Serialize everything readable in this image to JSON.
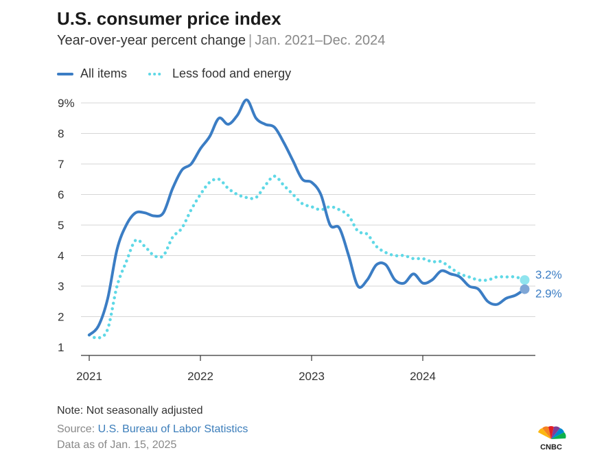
{
  "header": {
    "title": "U.S. consumer price index",
    "subtitle_main": "Year-over-year percent change",
    "subtitle_range": "Jan. 2021–Dec. 2024"
  },
  "legend": {
    "all_items": "All items",
    "core": "Less food and energy"
  },
  "footer": {
    "note": "Note: Not seasonally adjusted",
    "source_prefix": "Source:",
    "source_link": "U.S. Bureau of Labor Statistics",
    "as_of": "Data as of Jan. 15, 2025"
  },
  "logo": {
    "text": "CNBC",
    "icon": "cnbc-peacock-icon"
  },
  "colors": {
    "all_items": "#3b7dc4",
    "core": "#5fd8e6",
    "grid": "#d6d6d6",
    "text": "#333333"
  },
  "chart_data": {
    "type": "line",
    "x": [
      "2021-01",
      "2021-02",
      "2021-03",
      "2021-04",
      "2021-05",
      "2021-06",
      "2021-07",
      "2021-08",
      "2021-09",
      "2021-10",
      "2021-11",
      "2021-12",
      "2022-01",
      "2022-02",
      "2022-03",
      "2022-04",
      "2022-05",
      "2022-06",
      "2022-07",
      "2022-08",
      "2022-09",
      "2022-10",
      "2022-11",
      "2022-12",
      "2023-01",
      "2023-02",
      "2023-03",
      "2023-04",
      "2023-05",
      "2023-06",
      "2023-07",
      "2023-08",
      "2023-09",
      "2023-10",
      "2023-11",
      "2023-12",
      "2024-01",
      "2024-02",
      "2024-03",
      "2024-04",
      "2024-05",
      "2024-06",
      "2024-07",
      "2024-08",
      "2024-09",
      "2024-10",
      "2024-11",
      "2024-12"
    ],
    "series": [
      {
        "name": "All items",
        "style": "solid",
        "values": [
          1.4,
          1.7,
          2.6,
          4.2,
          5.0,
          5.4,
          5.4,
          5.3,
          5.4,
          6.2,
          6.8,
          7.0,
          7.5,
          7.9,
          8.5,
          8.3,
          8.6,
          9.1,
          8.5,
          8.3,
          8.2,
          7.7,
          7.1,
          6.5,
          6.4,
          6.0,
          5.0,
          4.9,
          4.0,
          3.0,
          3.2,
          3.7,
          3.7,
          3.2,
          3.1,
          3.4,
          3.1,
          3.2,
          3.5,
          3.4,
          3.3,
          3.0,
          2.9,
          2.5,
          2.4,
          2.6,
          2.7,
          2.9
        ]
      },
      {
        "name": "Less food and energy",
        "style": "dotted",
        "values": [
          1.4,
          1.3,
          1.6,
          3.0,
          3.8,
          4.5,
          4.3,
          4.0,
          4.0,
          4.6,
          4.9,
          5.5,
          6.0,
          6.4,
          6.5,
          6.2,
          6.0,
          5.9,
          5.9,
          6.3,
          6.6,
          6.3,
          6.0,
          5.7,
          5.6,
          5.5,
          5.6,
          5.5,
          5.3,
          4.8,
          4.7,
          4.3,
          4.1,
          4.0,
          4.0,
          3.9,
          3.9,
          3.8,
          3.8,
          3.6,
          3.4,
          3.3,
          3.2,
          3.2,
          3.3,
          3.3,
          3.3,
          3.2
        ]
      }
    ],
    "end_labels": [
      "3.2%",
      "2.9%"
    ],
    "ylim": [
      1,
      9
    ],
    "yticks": [
      "1",
      "2",
      "3",
      "4",
      "5",
      "6",
      "7",
      "8",
      "9%"
    ],
    "xticks": [
      "2021",
      "2022",
      "2023",
      "2024"
    ],
    "grid": true,
    "legend_position": "top-left"
  }
}
